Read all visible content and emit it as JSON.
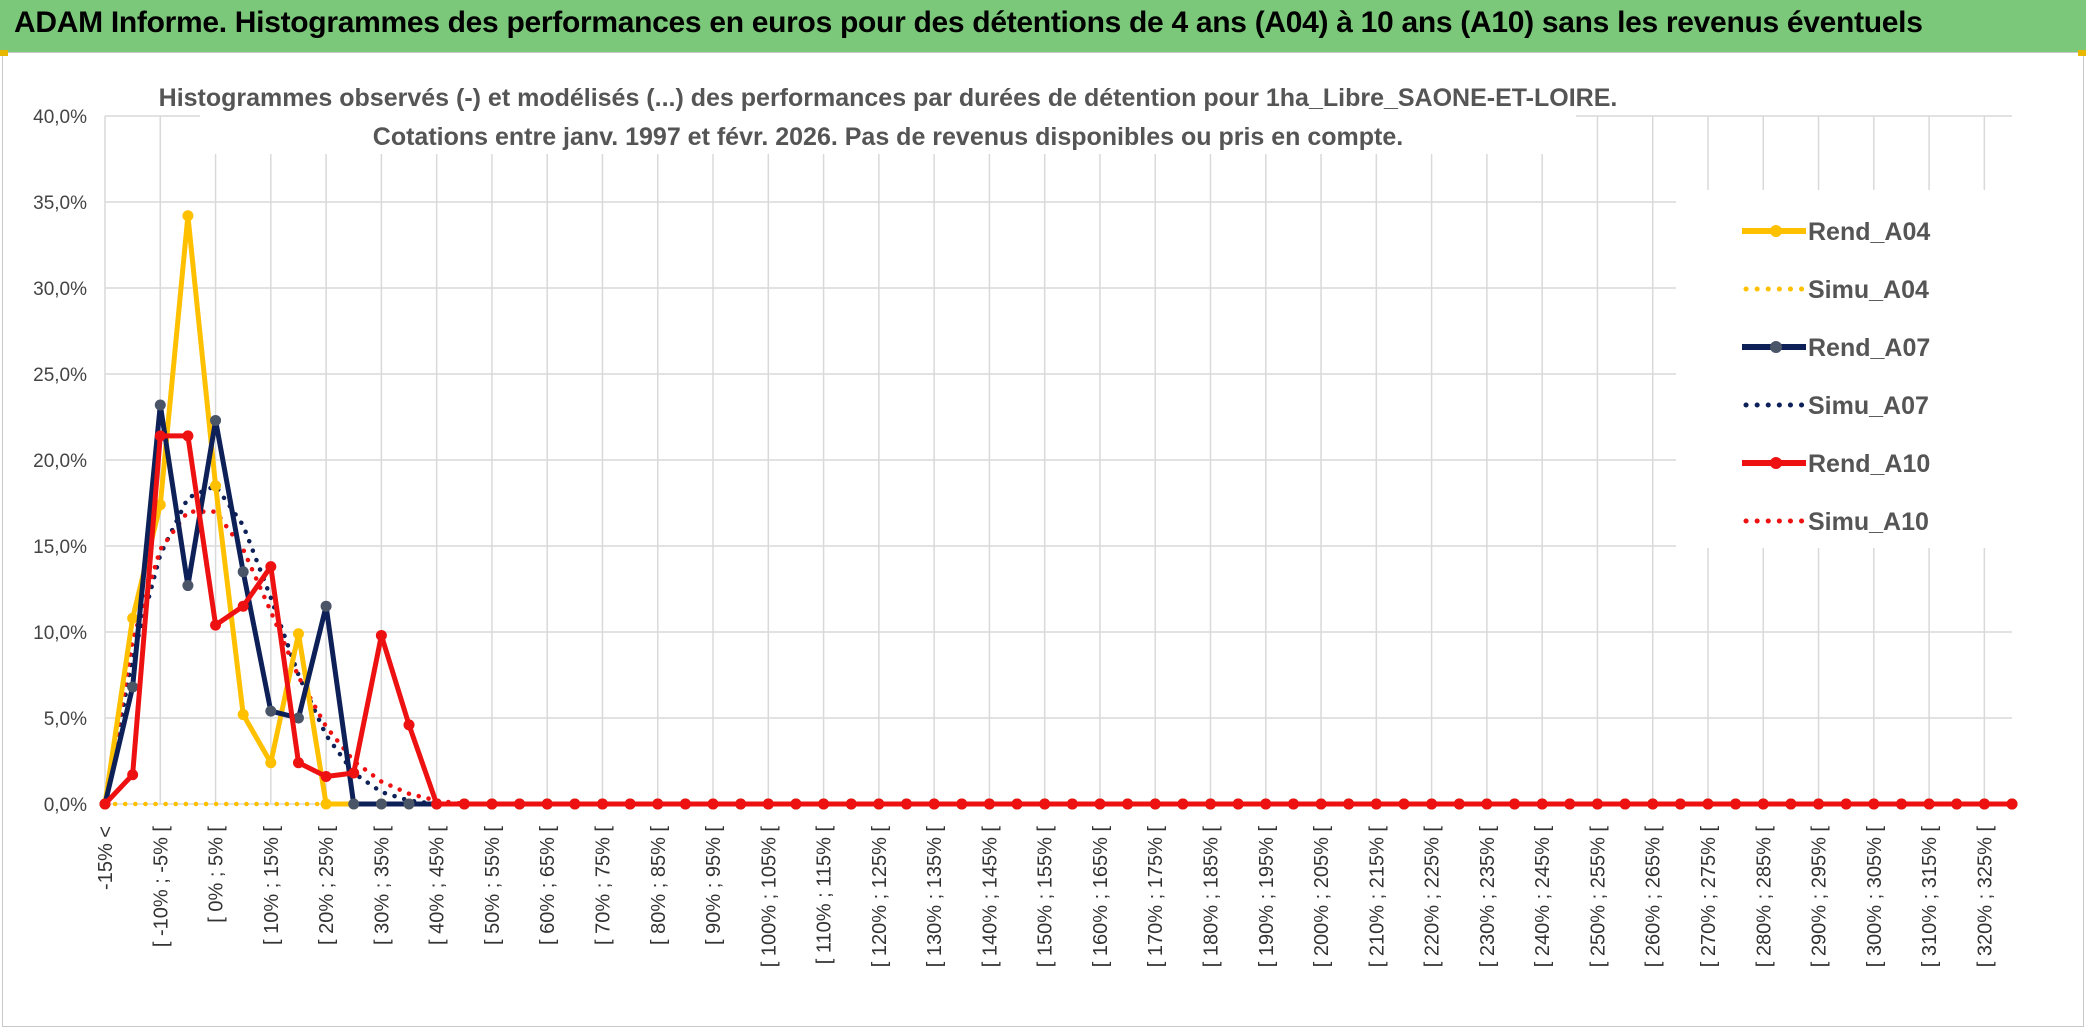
{
  "banner": {
    "title": "ADAM Informe. Histogrammes des performances en euros pour des détentions de 4 ans (A04) à 10 ans (A10) sans les revenus éventuels"
  },
  "colors": {
    "banner": "#7cc87a",
    "A04": "#ffc000",
    "A07": "#0d2158",
    "A10": "#ee1111",
    "grid": "#d9d9d9"
  },
  "chart_data": {
    "type": "line",
    "title": "Histogrammes observés (-) et modélisés (...) des performances par durées de détention pour 1ha_Libre_SAONE-ET-LOIRE.",
    "subtitle": "Cotations entre janv. 1997 et févr. 2026. Pas de revenus disponibles ou pris en compte.",
    "ylim": [
      0,
      40
    ],
    "yticks": [
      "0,0%",
      "5,0%",
      "10,0%",
      "15,0%",
      "20,0%",
      "25,0%",
      "30,0%",
      "35,0%",
      "40,0%"
    ],
    "x_tick_labels": [
      "-15% <",
      "[ -10% ; -5% [",
      "[ 0% ; 5% [",
      "[ 10% ; 15% [",
      "[ 20% ; 25% [",
      "[ 30% ; 35% [",
      "[ 40% ; 45% [",
      "[ 50% ; 55% [",
      "[ 60% ; 65% [",
      "[ 70% ; 75% [",
      "[ 80% ; 85% [",
      "[ 90% ; 95% [",
      "[ 100% ; 105% [",
      "[ 110% ; 115% [",
      "[ 120% ; 125% [",
      "[ 130% ; 135% [",
      "[ 140% ; 145% [",
      "[ 150% ; 155% [",
      "[ 160% ; 165% [",
      "[ 170% ; 175% [",
      "[ 180% ; 185% [",
      "[ 190% ; 195% [",
      "[ 200% ; 205% [",
      "[ 210% ; 215% [",
      "[ 220% ; 225% [",
      "[ 230% ; 235% [",
      "[ 240% ; 245% [",
      "[ 250% ; 255% [",
      "[ 260% ; 265% [",
      "[ 270% ; 275% [",
      "[ 280% ; 285% [",
      "[ 290% ; 295% [",
      "[ 300% ; 305% [",
      "[ 310% ; 315% [",
      "[ 320% ; 325% ["
    ],
    "grid": true,
    "legend_position": "right",
    "series": [
      {
        "name": "Rend_A04",
        "style": "solid",
        "color": "#ffc000",
        "values": [
          0,
          10.8,
          17.4,
          34.2,
          18.5,
          5.2,
          2.4,
          9.9,
          0,
          0,
          0,
          0,
          0,
          0,
          0,
          0,
          0,
          0,
          0,
          0,
          0,
          0,
          0,
          0,
          0,
          0,
          0,
          0,
          0,
          0,
          0,
          0,
          0,
          0,
          0,
          0,
          0,
          0,
          0,
          0,
          0,
          0,
          0,
          0,
          0,
          0,
          0,
          0,
          0,
          0,
          0,
          0,
          0,
          0,
          0,
          0,
          0,
          0,
          0,
          0,
          0,
          0,
          0,
          0,
          0,
          0,
          0,
          0,
          0,
          0
        ]
      },
      {
        "name": "Simu_A04",
        "style": "dotted",
        "color": "#ffc000",
        "values": [
          0,
          0,
          0,
          0,
          0,
          0,
          0,
          0,
          0,
          0,
          0,
          0,
          0,
          0,
          0,
          0,
          0,
          0,
          0,
          0,
          0,
          0,
          0,
          0,
          0,
          0,
          0,
          0,
          0,
          0,
          0,
          0,
          0,
          0,
          0,
          0,
          0,
          0,
          0,
          0,
          0,
          0,
          0,
          0,
          0,
          0,
          0,
          0,
          0,
          0,
          0,
          0,
          0,
          0,
          0,
          0,
          0,
          0,
          0,
          0,
          0,
          0,
          0,
          0,
          0,
          0,
          0,
          0,
          0,
          0
        ]
      },
      {
        "name": "Rend_A07",
        "style": "solid",
        "color": "#0d2158",
        "values": [
          0,
          6.8,
          23.2,
          12.7,
          22.3,
          13.5,
          5.4,
          5.0,
          11.5,
          0,
          0,
          0,
          0,
          0,
          0,
          0,
          0,
          0,
          0,
          0,
          0,
          0,
          0,
          0,
          0,
          0,
          0,
          0,
          0,
          0,
          0,
          0,
          0,
          0,
          0,
          0,
          0,
          0,
          0,
          0,
          0,
          0,
          0,
          0,
          0,
          0,
          0,
          0,
          0,
          0,
          0,
          0,
          0,
          0,
          0,
          0,
          0,
          0,
          0,
          0,
          0,
          0,
          0,
          0,
          0,
          0,
          0,
          0,
          0,
          0
        ]
      },
      {
        "name": "Simu_A07",
        "style": "dotted",
        "color": "#0d2158",
        "values": [
          0,
          8.5,
          14.5,
          17.8,
          18.5,
          16.2,
          12.0,
          7.5,
          4.0,
          1.8,
          0.7,
          0.2,
          0,
          0,
          0,
          0,
          0,
          0,
          0,
          0,
          0,
          0,
          0,
          0,
          0,
          0,
          0,
          0,
          0,
          0,
          0,
          0,
          0,
          0,
          0,
          0,
          0,
          0,
          0,
          0,
          0,
          0,
          0,
          0,
          0,
          0,
          0,
          0,
          0,
          0,
          0,
          0,
          0,
          0,
          0,
          0,
          0,
          0,
          0,
          0,
          0,
          0,
          0,
          0,
          0,
          0,
          0,
          0,
          0,
          0
        ]
      },
      {
        "name": "Rend_A10",
        "style": "solid",
        "color": "#ee1111",
        "values": [
          0,
          1.7,
          21.4,
          21.4,
          10.4,
          11.5,
          13.8,
          2.4,
          1.6,
          1.8,
          9.8,
          4.6,
          0,
          0,
          0,
          0,
          0,
          0,
          0,
          0,
          0,
          0,
          0,
          0,
          0,
          0,
          0,
          0,
          0,
          0,
          0,
          0,
          0,
          0,
          0,
          0,
          0,
          0,
          0,
          0,
          0,
          0,
          0,
          0,
          0,
          0,
          0,
          0,
          0,
          0,
          0,
          0,
          0,
          0,
          0,
          0,
          0,
          0,
          0,
          0,
          0,
          0,
          0,
          0,
          0,
          0,
          0,
          0,
          0,
          0
        ]
      },
      {
        "name": "Simu_A10",
        "style": "dotted",
        "color": "#ee1111",
        "values": [
          0,
          9.5,
          14.8,
          17.0,
          17.0,
          14.8,
          11.2,
          7.4,
          4.5,
          2.5,
          1.3,
          0.6,
          0.2,
          0,
          0,
          0,
          0,
          0,
          0,
          0,
          0,
          0,
          0,
          0,
          0,
          0,
          0,
          0,
          0,
          0,
          0,
          0,
          0,
          0,
          0,
          0,
          0,
          0,
          0,
          0,
          0,
          0,
          0,
          0,
          0,
          0,
          0,
          0,
          0,
          0,
          0,
          0,
          0,
          0,
          0,
          0,
          0,
          0,
          0,
          0,
          0,
          0,
          0,
          0,
          0,
          0,
          0,
          0,
          0,
          0
        ]
      }
    ]
  }
}
